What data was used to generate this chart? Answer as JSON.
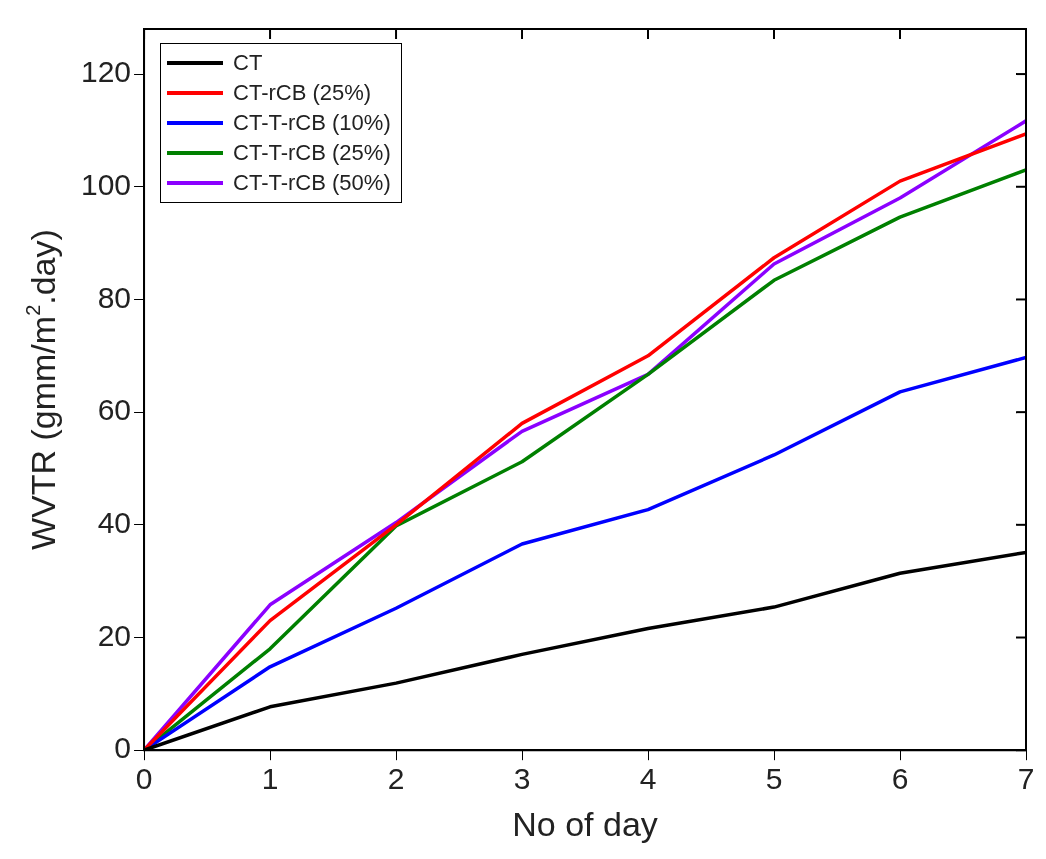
{
  "chart_data": {
    "type": "line",
    "xlabel": "No of day",
    "ylabel": "WVTR (gmm/m$^{2}$.day)",
    "x": [
      0,
      1,
      2,
      3,
      4,
      5,
      6,
      7
    ],
    "xlim": [
      0,
      7
    ],
    "xticks": [
      0,
      1,
      2,
      3,
      4,
      5,
      6,
      7
    ],
    "ylim": [
      0,
      128
    ],
    "yticks": [
      0,
      20,
      40,
      60,
      80,
      100,
      120
    ],
    "grid": false,
    "legend": "top left",
    "marker": "none",
    "line_style": "solid",
    "series": [
      {
        "name": "CT",
        "color": "#000000",
        "values": [
          0,
          7.7,
          11.9,
          17,
          21.6,
          25.4,
          31.4,
          35.1
        ]
      },
      {
        "name": "CT-rCB (25%)",
        "color": "#ff0000",
        "values": [
          0,
          23,
          40,
          58,
          70,
          87.4,
          101,
          109.4
        ]
      },
      {
        "name": "CT-T-rCB (10%)",
        "color": "#0000ff",
        "values": [
          0,
          14.8,
          25.2,
          36.6,
          42.7,
          52.4,
          63.6,
          69.7
        ]
      },
      {
        "name": "CT-T-rCB (25%)",
        "color": "#008000",
        "values": [
          0,
          18,
          39.8,
          51.2,
          66.7,
          83.4,
          94.6,
          103
        ]
      },
      {
        "name": "CT-T-rCB (50%)",
        "color": "#8b00ff",
        "values": [
          0,
          25.8,
          40.4,
          56.6,
          66.7,
          86.3,
          98,
          111.7
        ]
      }
    ]
  }
}
